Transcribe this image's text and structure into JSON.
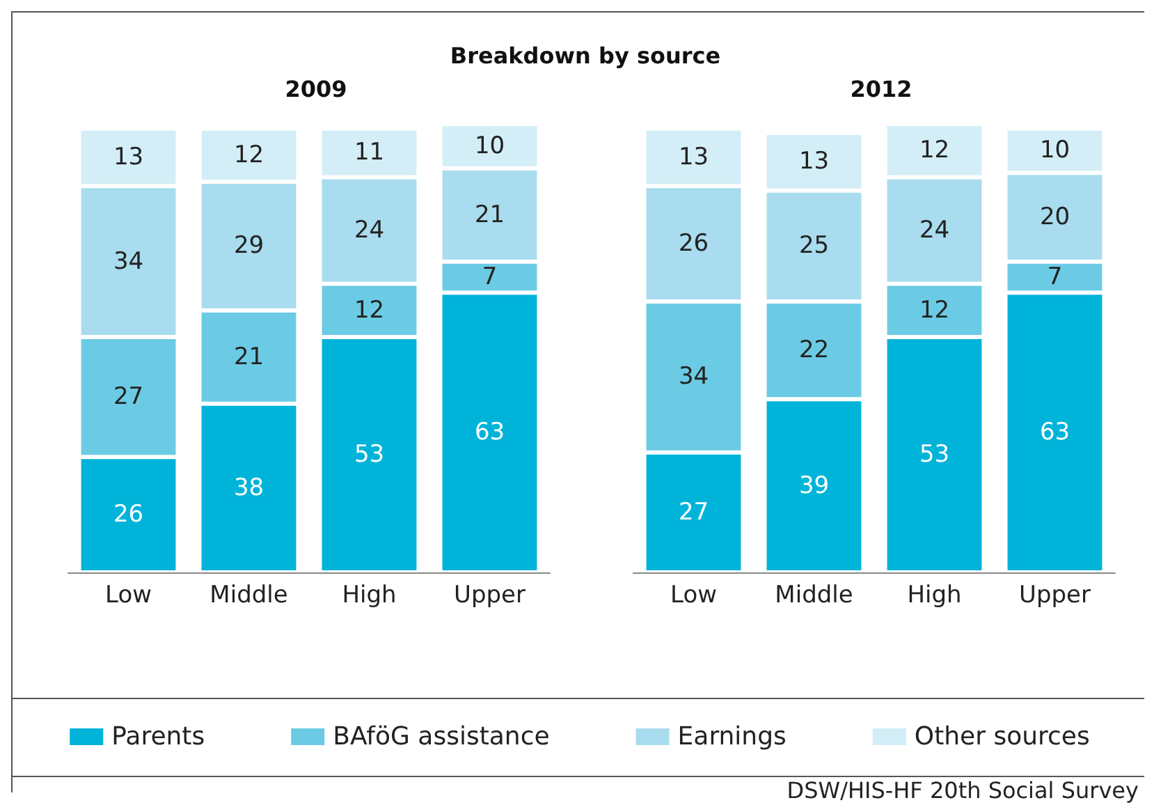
{
  "chart_data": [
    {
      "type": "bar",
      "title": "Breakdown by source",
      "subtitle": "2009",
      "categories": [
        "Low",
        "Middle",
        "High",
        "Upper"
      ],
      "stacked": true,
      "data_labels": true,
      "legend": "bottom",
      "series": [
        {
          "name": "Parents",
          "color": "#00b3d9",
          "values": [
            26,
            38,
            53,
            63
          ]
        },
        {
          "name": "BAföG assistance",
          "color": "#6ccbe4",
          "values": [
            27,
            21,
            12,
            7
          ]
        },
        {
          "name": "Earnings",
          "color": "#a8dcee",
          "values": [
            34,
            29,
            24,
            21
          ]
        },
        {
          "name": "Other sources",
          "color": "#d3eef7",
          "values": [
            13,
            12,
            11,
            10
          ]
        }
      ]
    },
    {
      "type": "bar",
      "subtitle": "2012",
      "categories": [
        "Low",
        "Middle",
        "High",
        "Upper"
      ],
      "stacked": true,
      "data_labels": true,
      "annotations": [
        "DSW/HIS-HF 20th Social Survey"
      ],
      "series": [
        {
          "color": "#00b3d9",
          "values": [
            27,
            39,
            53,
            63
          ]
        },
        {
          "color": "#6ccbe4",
          "values": [
            34,
            22,
            12,
            7
          ]
        },
        {
          "color": "#a8dcee",
          "values": [
            26,
            25,
            24,
            20
          ]
        },
        {
          "color": "#d3eef7",
          "values": [
            13,
            13,
            12,
            10
          ]
        }
      ]
    }
  ]
}
